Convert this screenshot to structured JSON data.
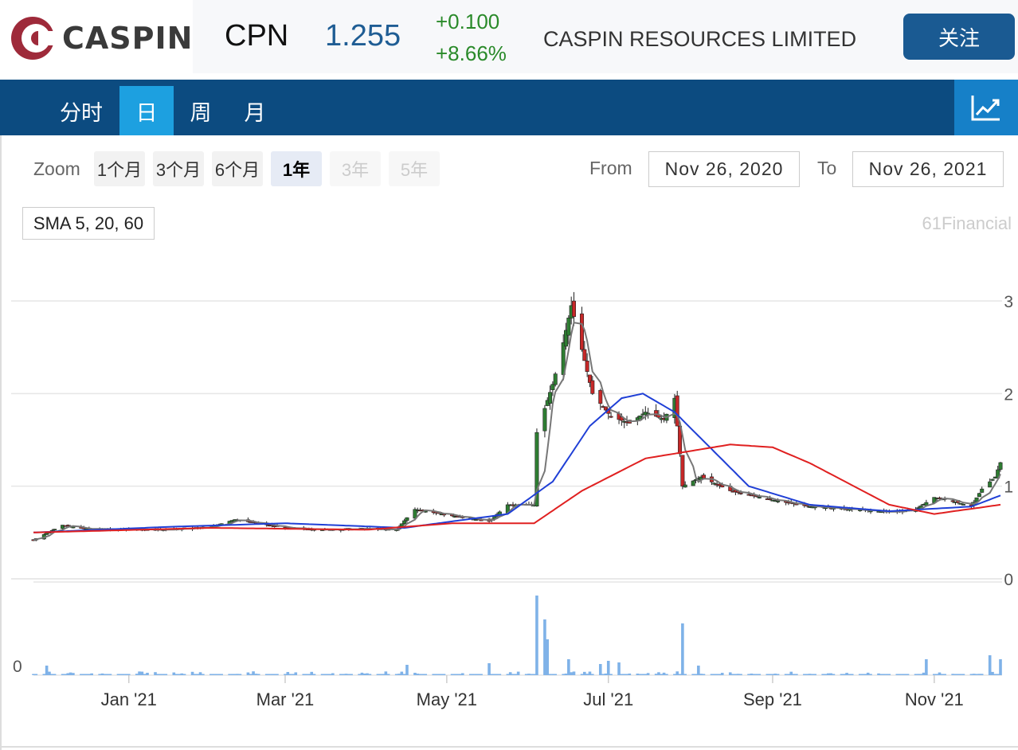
{
  "header": {
    "logo_text": "CASPIN",
    "ticker": "CPN",
    "price": "1.255",
    "change": "+0.100",
    "change_pct": "+8.66%",
    "company": "CASPIN RESOURCES LIMITED",
    "follow_label": "关注",
    "logo_color": "#9e2a3a",
    "up_color": "#2a8a2a"
  },
  "nav": {
    "tabs": [
      {
        "label": "分时",
        "active": false
      },
      {
        "label": "日",
        "active": true
      },
      {
        "label": "周",
        "active": false
      },
      {
        "label": "月",
        "active": false
      }
    ],
    "chart_icon": "trend-chart-icon"
  },
  "zoom": {
    "label": "Zoom",
    "buttons": [
      {
        "label": "1个月",
        "state": "normal"
      },
      {
        "label": "3个月",
        "state": "normal"
      },
      {
        "label": "6个月",
        "state": "normal"
      },
      {
        "label": "1年",
        "state": "active"
      },
      {
        "label": "3年",
        "state": "disabled"
      },
      {
        "label": "5年",
        "state": "disabled"
      }
    ],
    "from_label": "From",
    "from_value": "Nov 26, 2020",
    "to_label": "To",
    "to_value": "Nov 26, 2021"
  },
  "indicator": {
    "label": "SMA 5, 20, 60"
  },
  "credit": "61Financial",
  "chart_data": {
    "type": "candlestick",
    "y_ticks": [
      "0",
      "1",
      "2",
      "3"
    ],
    "ylim": [
      0,
      3
    ],
    "volume_tick": "0",
    "x_ticks": [
      "Jan '21",
      "Mar '21",
      "May '21",
      "Jul '21",
      "Sep '21",
      "Nov '21"
    ],
    "up_color": "#2e7d32",
    "down_color": "#c62828",
    "sma_colors": {
      "sma5": "#777777",
      "sma20": "#1f3fd6",
      "sma60": "#e02020"
    },
    "price_path": [
      [
        "2020-11-26",
        0.42
      ],
      [
        "2020-12-07",
        0.58
      ],
      [
        "2020-12-15",
        0.54
      ],
      [
        "2021-01-15",
        0.53
      ],
      [
        "2021-02-01",
        0.56
      ],
      [
        "2021-02-10",
        0.64
      ],
      [
        "2021-03-01",
        0.55
      ],
      [
        "2021-03-15",
        0.53
      ],
      [
        "2021-04-01",
        0.54
      ],
      [
        "2021-04-12",
        0.53
      ],
      [
        "2021-04-16",
        0.66
      ],
      [
        "2021-04-19",
        0.75
      ],
      [
        "2021-05-03",
        0.68
      ],
      [
        "2021-05-17",
        0.62
      ],
      [
        "2021-05-24",
        0.8
      ],
      [
        "2021-06-03",
        0.8
      ],
      [
        "2021-06-04",
        1.58
      ],
      [
        "2021-06-10",
        2.1
      ],
      [
        "2021-06-14",
        2.55
      ],
      [
        "2021-06-17",
        2.95
      ],
      [
        "2021-06-25",
        2.0
      ],
      [
        "2021-07-02",
        1.75
      ],
      [
        "2021-07-09",
        1.68
      ],
      [
        "2021-07-15",
        1.8
      ],
      [
        "2021-07-22",
        1.72
      ],
      [
        "2021-07-26",
        1.95
      ],
      [
        "2021-07-28",
        1.35
      ],
      [
        "2021-07-29",
        1.0
      ],
      [
        "2021-08-05",
        1.1
      ],
      [
        "2021-08-16",
        0.95
      ],
      [
        "2021-09-01",
        0.85
      ],
      [
        "2021-09-15",
        0.78
      ],
      [
        "2021-10-01",
        0.75
      ],
      [
        "2021-10-15",
        0.72
      ],
      [
        "2021-10-25",
        0.75
      ],
      [
        "2021-11-01",
        0.88
      ],
      [
        "2021-11-08",
        0.84
      ],
      [
        "2021-11-15",
        0.78
      ],
      [
        "2021-11-19",
        0.97
      ],
      [
        "2021-11-24",
        1.1
      ],
      [
        "2021-11-26",
        1.255
      ]
    ],
    "sma20_path": [
      [
        "2020-11-26",
        0.5
      ],
      [
        "2021-01-15",
        0.56
      ],
      [
        "2021-03-01",
        0.6
      ],
      [
        "2021-04-15",
        0.55
      ],
      [
        "2021-05-03",
        0.62
      ],
      [
        "2021-05-24",
        0.7
      ],
      [
        "2021-06-10",
        1.05
      ],
      [
        "2021-06-24",
        1.65
      ],
      [
        "2021-07-06",
        1.95
      ],
      [
        "2021-07-14",
        2.0
      ],
      [
        "2021-07-26",
        1.8
      ],
      [
        "2021-08-09",
        1.4
      ],
      [
        "2021-08-23",
        1.0
      ],
      [
        "2021-09-15",
        0.8
      ],
      [
        "2021-10-15",
        0.73
      ],
      [
        "2021-11-15",
        0.78
      ],
      [
        "2021-11-26",
        0.9
      ]
    ],
    "sma60_path": [
      [
        "2020-11-26",
        0.5
      ],
      [
        "2021-02-01",
        0.55
      ],
      [
        "2021-04-01",
        0.53
      ],
      [
        "2021-05-03",
        0.6
      ],
      [
        "2021-06-03",
        0.6
      ],
      [
        "2021-06-21",
        0.95
      ],
      [
        "2021-07-15",
        1.3
      ],
      [
        "2021-08-16",
        1.45
      ],
      [
        "2021-09-01",
        1.42
      ],
      [
        "2021-09-15",
        1.25
      ],
      [
        "2021-10-15",
        0.8
      ],
      [
        "2021-11-01",
        0.7
      ],
      [
        "2021-11-26",
        0.8
      ]
    ],
    "volume_spikes": [
      [
        "2021-06-04",
        1.0
      ],
      [
        "2021-06-07",
        0.7
      ],
      [
        "2021-06-08",
        0.45
      ],
      [
        "2021-07-29",
        0.65
      ],
      [
        "2021-11-22",
        0.25
      ],
      [
        "2021-11-26",
        0.2
      ],
      [
        "2021-10-29",
        0.2
      ],
      [
        "2021-05-17",
        0.15
      ],
      [
        "2021-04-16",
        0.13
      ],
      [
        "2020-12-01",
        0.12
      ],
      [
        "2021-06-16",
        0.2
      ],
      [
        "2021-07-01",
        0.18
      ],
      [
        "2021-08-04",
        0.12
      ],
      [
        "2021-06-28",
        0.14
      ],
      [
        "2021-07-05",
        0.16
      ]
    ]
  }
}
